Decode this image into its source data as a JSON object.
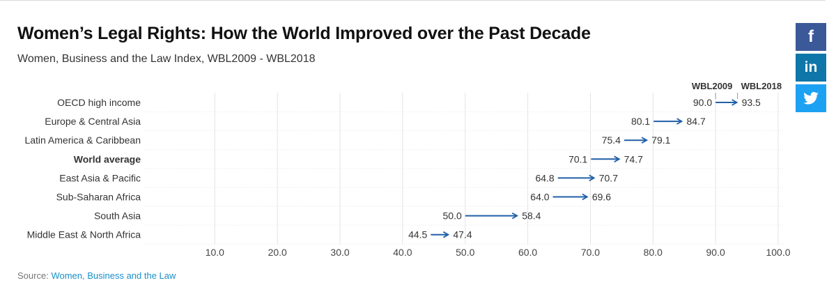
{
  "title": "Women’s Legal Rights: How the World Improved over the Past Decade",
  "subtitle": "Women, Business and the Law Index, WBL2009 - WBL2018",
  "social": {
    "facebook_glyph": "f",
    "linkedin_glyph": "in",
    "icons": [
      "facebook-icon",
      "linkedin-icon",
      "twitter-icon"
    ],
    "colors": {
      "facebook": "#3b5998",
      "linkedin": "#0e76a8",
      "twitter": "#1da1f2"
    }
  },
  "source": {
    "label": "Source:",
    "link_text": "Women, Business and the Law"
  },
  "chart_data": {
    "type": "dumbbell-arrow",
    "categories": [
      "OECD high income",
      "Europe & Central Asia",
      "Latin America & Caribbean",
      "World average",
      "East Asia & Pacific",
      "Sub-Saharan Africa",
      "South Asia",
      "Middle East & North Africa"
    ],
    "highlight": "World average",
    "series": [
      {
        "name": "WBL2009",
        "values": [
          90.0,
          80.1,
          75.4,
          70.1,
          64.8,
          64.0,
          50.0,
          44.5
        ]
      },
      {
        "name": "WBL2018",
        "values": [
          93.5,
          84.7,
          79.1,
          74.7,
          70.7,
          69.6,
          58.4,
          47.4
        ]
      }
    ],
    "value_labels": {
      "WBL2009": [
        "90.0",
        "80.1",
        "75.4",
        "70.1",
        "64.8",
        "64.0",
        "50.0",
        "44.5"
      ],
      "WBL2018": [
        "93.5",
        "84.7",
        "79.1",
        "74.7",
        "70.7",
        "69.6",
        "58.4",
        "47.4"
      ]
    },
    "x_ticks": [
      "10.0",
      "20.0",
      "30.0",
      "40.0",
      "50.0",
      "60.0",
      "70.0",
      "80.0",
      "90.0",
      "100.0"
    ],
    "xlim": [
      0,
      101
    ],
    "grid": true,
    "colors": {
      "arrow": "#1f5fa8",
      "text": "#333333",
      "grid": "#e3e3e3"
    }
  }
}
